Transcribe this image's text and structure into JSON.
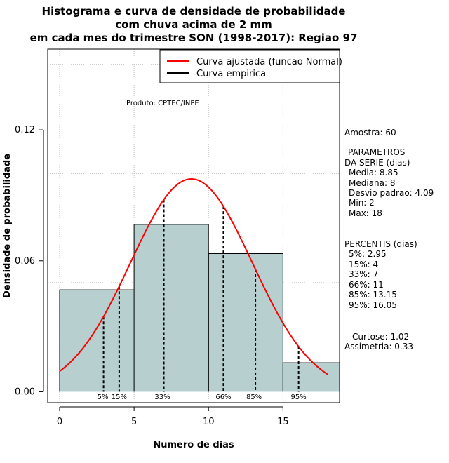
{
  "chart_data": {
    "type": "histogram",
    "title_lines": [
      "Histograma e curva de densidade de probabilidade",
      "com chuva acima de 2 mm",
      "em cada mes do trimestre SON (1998-2017): Regiao 97"
    ],
    "xlabel": "Numero de dias",
    "ylabel": "Densidade de probabilidade",
    "xlim": [
      -0.8,
      18.8
    ],
    "ylim": [
      -0.005,
      0.157
    ],
    "x_ticks": [
      0,
      5,
      10,
      15
    ],
    "y_ticks": [
      0.0,
      0.06,
      0.12
    ],
    "y_tick_labels": [
      "0.00",
      "0.06",
      "0.12"
    ],
    "grid_x": [
      0,
      5,
      10,
      15
    ],
    "grid_y": [
      0.05,
      0.1,
      0.15
    ],
    "bars": [
      {
        "x0": 0,
        "x1": 5,
        "density": 0.0467
      },
      {
        "x0": 5,
        "x1": 10,
        "density": 0.0767
      },
      {
        "x0": 10,
        "x1": 15,
        "density": 0.0633
      },
      {
        "x0": 15,
        "x1": 18.8,
        "density": 0.0133
      }
    ],
    "normal_fit": {
      "mean": 8.85,
      "sd": 4.09,
      "x_from": 0,
      "x_to": 18
    },
    "percentiles": [
      {
        "label": "5%",
        "value": 2.95
      },
      {
        "label": "15%",
        "value": 4
      },
      {
        "label": "33%",
        "value": 7
      },
      {
        "label": "66%",
        "value": 11
      },
      {
        "label": "85%",
        "value": 13.15
      },
      {
        "label": "95%",
        "value": 16.05
      }
    ],
    "legend": [
      {
        "label": "Curva ajustada (funcao Normal)",
        "color": "#ff0000"
      },
      {
        "label": "Curva empirica",
        "color": "#000000"
      }
    ],
    "legend_position": "top-right",
    "credit": "Produto: CPTEC/INPE",
    "colors": {
      "bar_fill": "#b7cfcf",
      "fit_curve": "#ff0000",
      "grid": "#bebebe"
    }
  },
  "stats": {
    "sample": "Amostra: 60",
    "params_title_1": "PARAMETROS",
    "params_title_2": "DA SERIE (dias)",
    "params": [
      "Media: 8.85",
      "Mediana: 8",
      "Desvio padrao: 4.09",
      "Min: 2",
      "Max: 18"
    ],
    "percentis_title": "PERCENTIS (dias)",
    "percentis": [
      "5%: 2.95",
      "15%: 4",
      "33%: 7",
      "66%: 11",
      "85%: 13.15",
      "95%: 16.05"
    ],
    "shape": [
      "Curtose: 1.02",
      "Assimetria: 0.33"
    ]
  }
}
